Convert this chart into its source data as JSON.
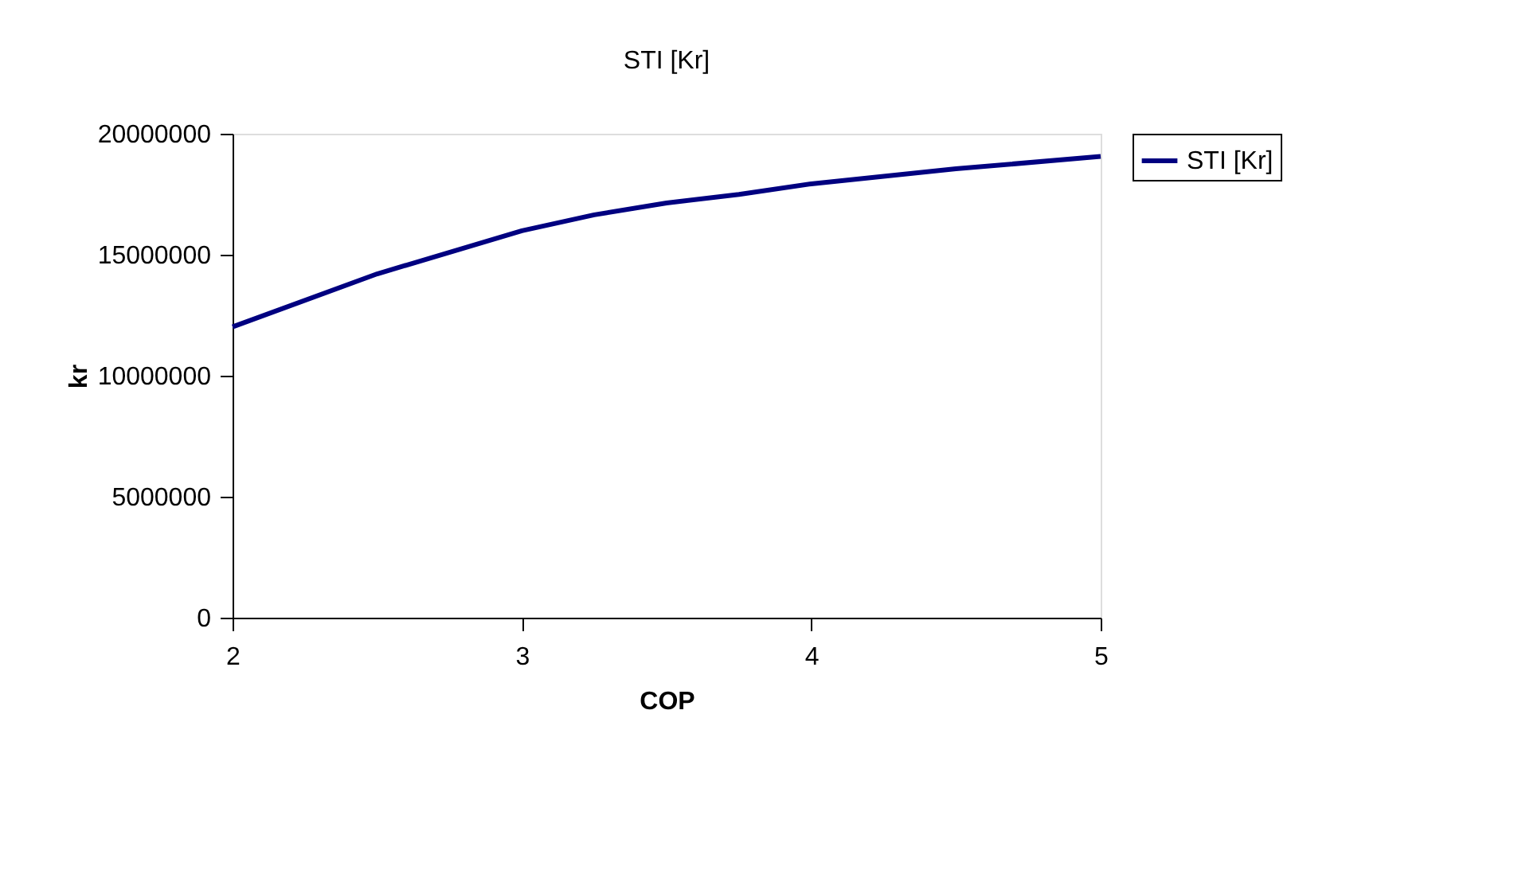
{
  "chart_data": {
    "type": "line",
    "title": "STI [Kr]",
    "xlabel": "COP",
    "ylabel": "kr",
    "x": [
      2,
      2.5,
      3,
      3.25,
      3.5,
      3.75,
      4,
      4.5,
      5
    ],
    "series": [
      {
        "name": "STI [Kr]",
        "color": "#000080",
        "values": [
          12020000,
          14210000,
          15990000,
          16650000,
          17140000,
          17490000,
          17930000,
          18550000,
          19060000
        ]
      }
    ],
    "xlim": [
      2,
      5
    ],
    "xticks": [
      2,
      3,
      4,
      5
    ],
    "ylim": [
      0,
      20000000
    ],
    "yticks": [
      0,
      5000000,
      10000000,
      15000000,
      20000000
    ],
    "grid": false,
    "legend": "right",
    "marker": "none",
    "line_style": "solid"
  }
}
